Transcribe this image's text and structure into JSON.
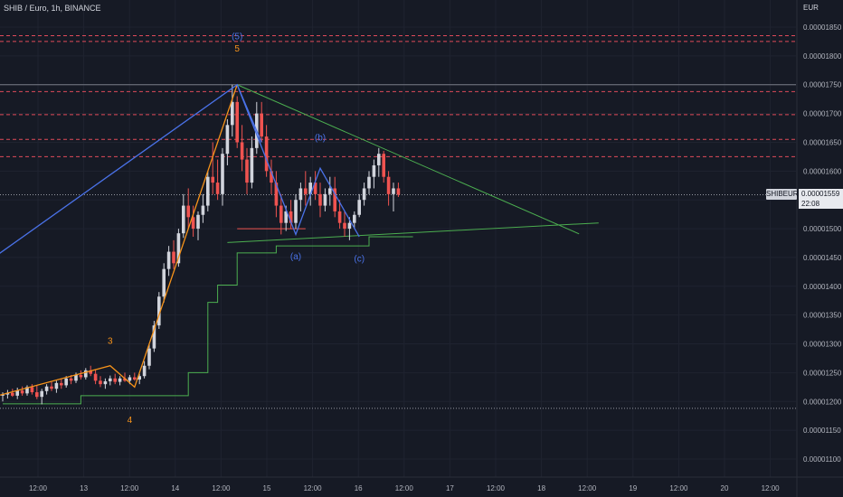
{
  "header": {
    "title": "SHIB / Euro, 1h, BINANCE",
    "currency": "EUR"
  },
  "last_price": {
    "symbol": "SHIBEUR",
    "value": "0.00001559",
    "countdown": "22:08"
  },
  "colors": {
    "background": "#161a25",
    "bull": "#d1d4dc",
    "bear": "#ef5350",
    "wave_orange": "#f7931a",
    "wave_blue": "#4a72e8",
    "trend_green": "#4caf50",
    "resistance_red": "#e04a5a"
  },
  "chart_data": {
    "type": "candlestick",
    "y_axis": {
      "ticks": [
        "0.00001850",
        "0.00001800",
        "0.00001750",
        "0.00001700",
        "0.00001650",
        "0.00001600",
        "0.00001550",
        "0.00001500",
        "0.00001450",
        "0.00001400",
        "0.00001350",
        "0.00001300",
        "0.00001250",
        "0.00001200",
        "0.00001150",
        "0.00001100"
      ],
      "range": [
        1.085e-05,
        1.88e-05
      ]
    },
    "x_axis": {
      "ticks": [
        "12:00",
        "13",
        "12:00",
        "14",
        "12:00",
        "15",
        "12:00",
        "16",
        "12:00",
        "17",
        "12:00",
        "18",
        "12:00",
        "19",
        "12:00",
        "20",
        "12:00"
      ]
    },
    "candles": [
      [
        1.21e-05,
        1.216e-05,
        1.2e-05,
        1.212e-05
      ],
      [
        1.212e-05,
        1.22e-05,
        1.205e-05,
        1.215e-05
      ],
      [
        1.215e-05,
        1.222e-05,
        1.208e-05,
        1.21e-05
      ],
      [
        1.21e-05,
        1.224e-05,
        1.204e-05,
        1.219e-05
      ],
      [
        1.219e-05,
        1.226e-05,
        1.21e-05,
        1.214e-05
      ],
      [
        1.214e-05,
        1.228e-05,
        1.21e-05,
        1.225e-05
      ],
      [
        1.225e-05,
        1.23e-05,
        1.212e-05,
        1.216e-05
      ],
      [
        1.216e-05,
        1.228e-05,
        1.204e-05,
        1.208e-05
      ],
      [
        1.208e-05,
        1.222e-05,
        1.195e-05,
        1.218e-05
      ],
      [
        1.218e-05,
        1.23e-05,
        1.212e-05,
        1.226e-05
      ],
      [
        1.226e-05,
        1.234e-05,
        1.218e-05,
        1.222e-05
      ],
      [
        1.222e-05,
        1.236e-05,
        1.215e-05,
        1.232e-05
      ],
      [
        1.232e-05,
        1.24e-05,
        1.222e-05,
        1.228e-05
      ],
      [
        1.228e-05,
        1.244e-05,
        1.224e-05,
        1.24e-05
      ],
      [
        1.24e-05,
        1.246e-05,
        1.23e-05,
        1.236e-05
      ],
      [
        1.236e-05,
        1.25e-05,
        1.232e-05,
        1.246e-05
      ],
      [
        1.246e-05,
        1.254e-05,
        1.238e-05,
        1.242e-05
      ],
      [
        1.242e-05,
        1.258e-05,
        1.238e-05,
        1.254e-05
      ],
      [
        1.254e-05,
        1.262e-05,
        1.244e-05,
        1.248e-05
      ],
      [
        1.248e-05,
        1.256e-05,
        1.23e-05,
        1.236e-05
      ],
      [
        1.236e-05,
        1.244e-05,
        1.225e-05,
        1.23e-05
      ],
      [
        1.23e-05,
        1.24e-05,
        1.222e-05,
        1.235e-05
      ],
      [
        1.235e-05,
        1.245e-05,
        1.228e-05,
        1.24e-05
      ],
      [
        1.24e-05,
        1.248e-05,
        1.23e-05,
        1.234e-05
      ],
      [
        1.234e-05,
        1.244e-05,
        1.228e-05,
        1.24e-05
      ],
      [
        1.24e-05,
        1.25e-05,
        1.234e-05,
        1.236e-05
      ],
      [
        1.236e-05,
        1.246e-05,
        1.23e-05,
        1.242e-05
      ],
      [
        1.242e-05,
        1.25e-05,
        1.236e-05,
        1.238e-05
      ],
      [
        1.238e-05,
        1.248e-05,
        1.23e-05,
        1.244e-05
      ],
      [
        1.244e-05,
        1.27e-05,
        1.24e-05,
        1.262e-05
      ],
      [
        1.262e-05,
        1.3e-05,
        1.256e-05,
        1.292e-05
      ],
      [
        1.292e-05,
        1.34e-05,
        1.286e-05,
        1.332e-05
      ],
      [
        1.332e-05,
        1.39e-05,
        1.326e-05,
        1.382e-05
      ],
      [
        1.382e-05,
        1.44e-05,
        1.372e-05,
        1.43e-05
      ],
      [
        1.43e-05,
        1.47e-05,
        1.418e-05,
        1.46e-05
      ],
      [
        1.46e-05,
        1.48e-05,
        1.43e-05,
        1.44e-05
      ],
      [
        1.44e-05,
        1.5e-05,
        1.434e-05,
        1.492e-05
      ],
      [
        1.492e-05,
        1.56e-05,
        1.484e-05,
        1.54e-05
      ],
      [
        1.54e-05,
        1.57e-05,
        1.5e-05,
        1.52e-05
      ],
      [
        1.52e-05,
        1.54e-05,
        1.486e-05,
        1.5e-05
      ],
      [
        1.5e-05,
        1.53e-05,
        1.48e-05,
        1.524e-05
      ],
      [
        1.524e-05,
        1.56e-05,
        1.51e-05,
        1.54e-05
      ],
      [
        1.54e-05,
        1.6e-05,
        1.53e-05,
        1.59e-05
      ],
      [
        1.59e-05,
        1.65e-05,
        1.56e-05,
        1.58e-05
      ],
      [
        1.58e-05,
        1.62e-05,
        1.55e-05,
        1.56e-05
      ],
      [
        1.56e-05,
        1.64e-05,
        1.54e-05,
        1.63e-05
      ],
      [
        1.63e-05,
        1.69e-05,
        1.61e-05,
        1.68e-05
      ],
      [
        1.68e-05,
        1.75e-05,
        1.66e-05,
        1.72e-05
      ],
      [
        1.72e-05,
        1.73e-05,
        1.64e-05,
        1.65e-05
      ],
      [
        1.65e-05,
        1.68e-05,
        1.6e-05,
        1.62e-05
      ],
      [
        1.62e-05,
        1.64e-05,
        1.56e-05,
        1.58e-05
      ],
      [
        1.58e-05,
        1.66e-05,
        1.57e-05,
        1.64e-05
      ],
      [
        1.64e-05,
        1.72e-05,
        1.63e-05,
        1.7e-05
      ],
      [
        1.7e-05,
        1.72e-05,
        1.65e-05,
        1.66e-05
      ],
      [
        1.66e-05,
        1.68e-05,
        1.59e-05,
        1.6e-05
      ],
      [
        1.6e-05,
        1.62e-05,
        1.56e-05,
        1.58e-05
      ],
      [
        1.58e-05,
        1.6e-05,
        1.52e-05,
        1.54e-05
      ],
      [
        1.54e-05,
        1.56e-05,
        1.49e-05,
        1.51e-05
      ],
      [
        1.51e-05,
        1.54e-05,
        1.496e-05,
        1.53e-05
      ],
      [
        1.53e-05,
        1.55e-05,
        1.5e-05,
        1.51e-05
      ],
      [
        1.51e-05,
        1.56e-05,
        1.5e-05,
        1.55e-05
      ],
      [
        1.55e-05,
        1.58e-05,
        1.53e-05,
        1.57e-05
      ],
      [
        1.57e-05,
        1.6e-05,
        1.54e-05,
        1.56e-05
      ],
      [
        1.56e-05,
        1.59e-05,
        1.54e-05,
        1.58e-05
      ],
      [
        1.58e-05,
        1.6e-05,
        1.55e-05,
        1.56e-05
      ],
      [
        1.56e-05,
        1.58e-05,
        1.52e-05,
        1.54e-05
      ],
      [
        1.54e-05,
        1.57e-05,
        1.53e-05,
        1.56e-05
      ],
      [
        1.56e-05,
        1.59e-05,
        1.54e-05,
        1.57e-05
      ],
      [
        1.57e-05,
        1.59e-05,
        1.52e-05,
        1.53e-05
      ],
      [
        1.53e-05,
        1.55e-05,
        1.5e-05,
        1.51e-05
      ],
      [
        1.51e-05,
        1.53e-05,
        1.486e-05,
        1.5e-05
      ],
      [
        1.5e-05,
        1.52e-05,
        1.48e-05,
        1.51e-05
      ],
      [
        1.51e-05,
        1.53e-05,
        1.5e-05,
        1.524e-05
      ],
      [
        1.524e-05,
        1.56e-05,
        1.52e-05,
        1.55e-05
      ],
      [
        1.55e-05,
        1.58e-05,
        1.54e-05,
        1.57e-05
      ],
      [
        1.57e-05,
        1.6e-05,
        1.56e-05,
        1.59e-05
      ],
      [
        1.59e-05,
        1.62e-05,
        1.57e-05,
        1.61e-05
      ],
      [
        1.61e-05,
        1.64e-05,
        1.59e-05,
        1.63e-05
      ],
      [
        1.63e-05,
        1.635e-05,
        1.58e-05,
        1.59e-05
      ],
      [
        1.59e-05,
        1.6e-05,
        1.54e-05,
        1.56e-05
      ],
      [
        1.56e-05,
        1.58e-05,
        1.53e-05,
        1.57e-05
      ],
      [
        1.57e-05,
        1.58e-05,
        1.555e-05,
        1.559e-05
      ]
    ],
    "horizontal_lines": [
      {
        "kind": "dashed-red",
        "price": 1.835e-05
      },
      {
        "kind": "dashed-red",
        "price": 1.825e-05
      },
      {
        "kind": "dashed-red",
        "price": 1.738e-05
      },
      {
        "kind": "dashed-red",
        "price": 1.698e-05
      },
      {
        "kind": "dashed-red",
        "price": 1.655e-05
      },
      {
        "kind": "dashed-red",
        "price": 1.625e-05
      },
      {
        "kind": "solid-grey",
        "price": 1.75e-05
      },
      {
        "kind": "dotted-grey",
        "price": 1.559e-05
      },
      {
        "kind": "dotted-grey",
        "price": 1.188e-05
      }
    ],
    "wave_labels": [
      {
        "text": "(5)",
        "color": "blue"
      },
      {
        "text": "5",
        "color": "orange"
      },
      {
        "text": "3",
        "color": "orange"
      },
      {
        "text": "4",
        "color": "orange"
      },
      {
        "text": "(a)",
        "color": "blue"
      },
      {
        "text": "(b)",
        "color": "blue"
      },
      {
        "text": "(c)",
        "color": "blue"
      }
    ]
  }
}
